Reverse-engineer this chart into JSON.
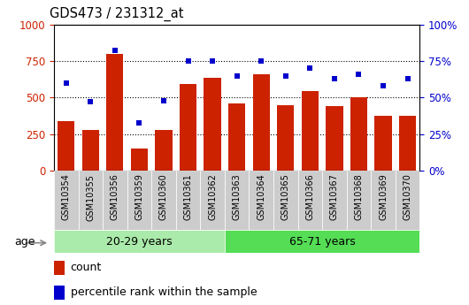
{
  "title": "GDS473 / 231312_at",
  "samples": [
    "GSM10354",
    "GSM10355",
    "GSM10356",
    "GSM10359",
    "GSM10360",
    "GSM10361",
    "GSM10362",
    "GSM10363",
    "GSM10364",
    "GSM10365",
    "GSM10366",
    "GSM10367",
    "GSM10368",
    "GSM10369",
    "GSM10370"
  ],
  "counts": [
    340,
    280,
    800,
    155,
    280,
    590,
    635,
    460,
    660,
    450,
    545,
    445,
    500,
    375,
    375
  ],
  "percentile": [
    60,
    47,
    82,
    33,
    48,
    75,
    75,
    65,
    75,
    65,
    70,
    63,
    66,
    58,
    63
  ],
  "group1_label": "20-29 years",
  "group2_label": "65-71 years",
  "group1_count": 7,
  "group2_count": 8,
  "age_label": "age",
  "bar_color": "#cc2200",
  "dot_color": "#0000cc",
  "group1_bg": "#aaeaaa",
  "group2_bg": "#55dd55",
  "tick_bg": "#cccccc",
  "legend_count": "count",
  "legend_pct": "percentile rank within the sample",
  "ylim_left": [
    0,
    1000
  ],
  "ylim_right": [
    0,
    100
  ],
  "yticks_left": [
    0,
    250,
    500,
    750,
    1000
  ],
  "yticks_right": [
    0,
    25,
    50,
    75,
    100
  ],
  "grid_lines": [
    250,
    500,
    750
  ]
}
